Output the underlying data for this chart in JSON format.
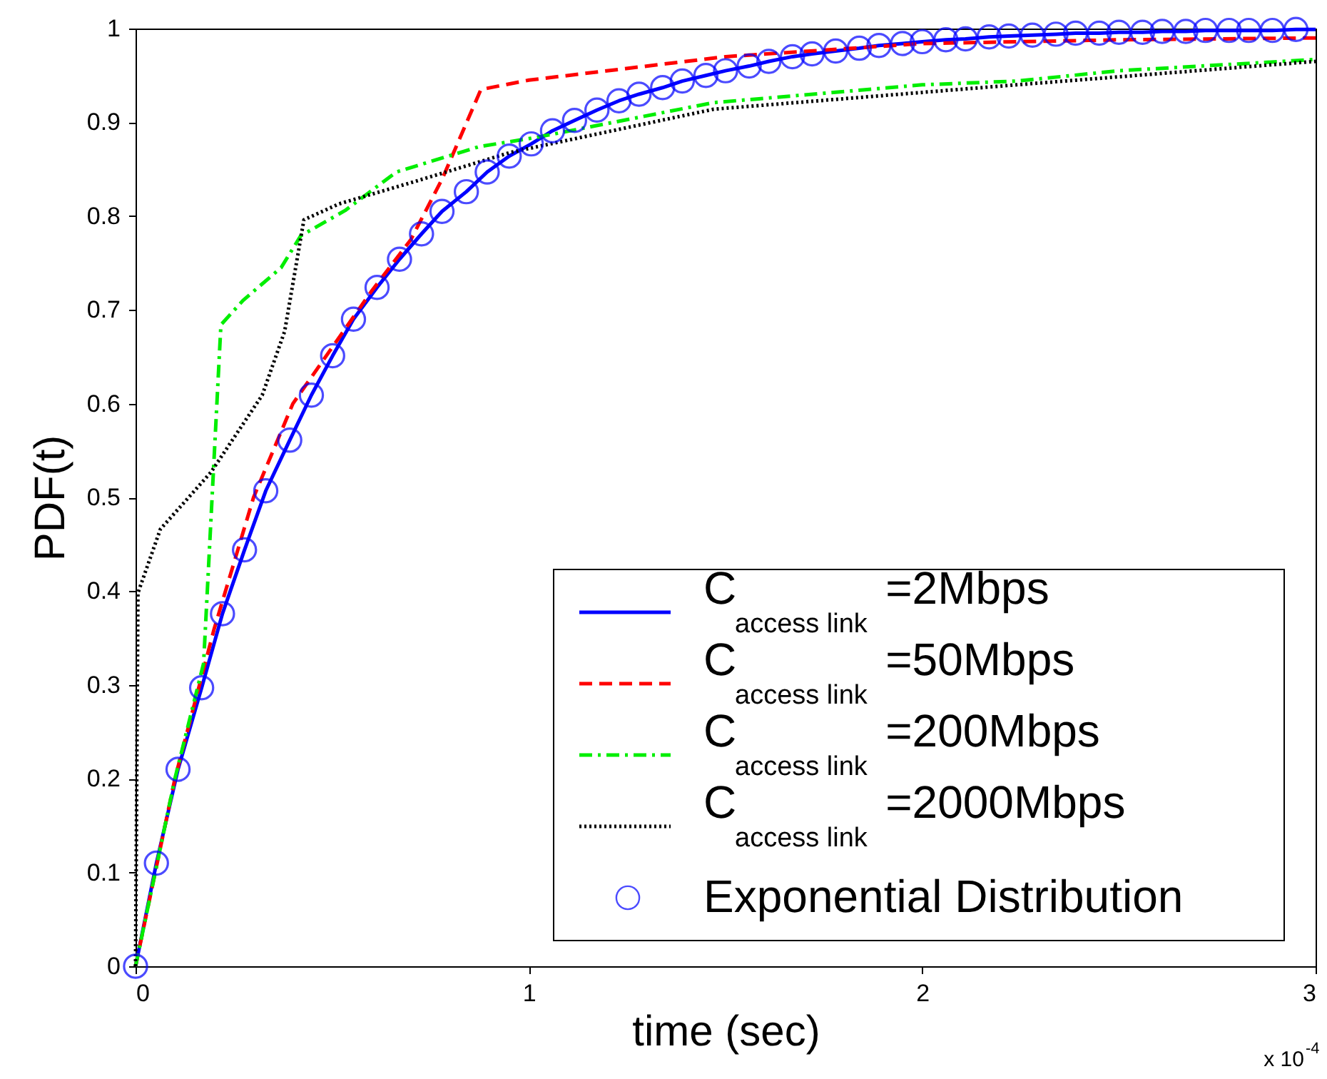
{
  "chart_data": {
    "type": "line",
    "xlabel": "time (sec)",
    "ylabel": "PDF(t)",
    "annotations": [
      "x 10$^{-4}$"
    ],
    "xlim": [
      0,
      3
    ],
    "xticks": [
      0,
      1,
      2,
      3
    ],
    "ylim": [
      0,
      1
    ],
    "yticks": [
      0,
      0.1,
      0.2,
      0.3,
      0.4,
      0.5,
      0.6,
      0.7,
      0.8,
      0.9,
      1
    ],
    "grid": false,
    "legend": "bottom right",
    "marker": "none",
    "series": [
      {
        "name": "C$_{access link}$=2Mbps",
        "color": "#0000ff",
        "line_style": "solid",
        "x": [
          0,
          0.053,
          0.108,
          0.168,
          0.221,
          0.277,
          0.331,
          0.392,
          0.447,
          0.501,
          0.554,
          0.614,
          0.671,
          0.727,
          0.779,
          0.841,
          0.894,
          0.95,
          1.006,
          1.06,
          1.116,
          1.173,
          1.229,
          1.28,
          1.34,
          1.39,
          1.45,
          1.5,
          1.56,
          1.61,
          1.67,
          1.72,
          1.78,
          1.84,
          1.89,
          1.95,
          2.0,
          2.06,
          2.11,
          2.17,
          2.22,
          2.28,
          2.34,
          2.39,
          2.45,
          2.5,
          2.56,
          2.61,
          2.67,
          2.72,
          2.78,
          2.83,
          2.89,
          2.95,
          3.0
        ],
        "values": [
          0,
          0.11,
          0.21,
          0.297,
          0.376,
          0.444,
          0.507,
          0.561,
          0.609,
          0.651,
          0.69,
          0.724,
          0.754,
          0.781,
          0.805,
          0.826,
          0.847,
          0.864,
          0.877,
          0.891,
          0.902,
          0.913,
          0.923,
          0.93,
          0.937,
          0.944,
          0.95,
          0.955,
          0.96,
          0.965,
          0.97,
          0.973,
          0.976,
          0.979,
          0.982,
          0.984,
          0.986,
          0.988,
          0.989,
          0.991,
          0.992,
          0.993,
          0.994,
          0.995,
          0.995,
          0.996,
          0.996,
          0.997,
          0.997,
          0.998,
          0.998,
          0.998,
          0.998,
          0.999,
          0.999
        ]
      },
      {
        "name": "C$_{access link}$=50Mbps",
        "color": "#ff0000",
        "line_style": "dashed",
        "x": [
          0,
          0.1,
          0.2,
          0.3,
          0.4,
          0.5,
          0.6,
          0.7,
          0.78,
          0.878,
          1.0,
          1.5,
          2.0,
          2.5,
          3.0
        ],
        "values": [
          0,
          0.2,
          0.36,
          0.5,
          0.6,
          0.66,
          0.72,
          0.775,
          0.84,
          0.935,
          0.945,
          0.97,
          0.984,
          0.988,
          0.99
        ]
      },
      {
        "name": "C$_{access link}$=200Mbps",
        "color": "#00ee00",
        "line_style": "dashdot",
        "x": [
          0,
          0.1,
          0.173,
          0.217,
          0.273,
          0.37,
          0.42,
          0.533,
          0.663,
          0.873,
          1.02,
          1.47,
          2.0,
          2.24,
          2.5,
          3.0
        ],
        "values": [
          0,
          0.2,
          0.323,
          0.684,
          0.71,
          0.745,
          0.779,
          0.806,
          0.847,
          0.874,
          0.884,
          0.921,
          0.94,
          0.944,
          0.955,
          0.967
        ]
      },
      {
        "name": "C$_{access link}$=2000Mbps",
        "color": "#000000",
        "line_style": "dotted",
        "x": [
          0,
          0.006,
          0.063,
          0.192,
          0.322,
          0.379,
          0.428,
          0.517,
          0.711,
          0.954,
          1.47,
          2.24,
          3.0
        ],
        "values": [
          0,
          0.398,
          0.466,
          0.527,
          0.609,
          0.677,
          0.796,
          0.813,
          0.837,
          0.868,
          0.914,
          0.94,
          0.965
        ]
      },
      {
        "name": "Exponential Distribution",
        "color": "#0000ff",
        "type": "scatter",
        "marker": "circle",
        "x": [
          0,
          0.053,
          0.108,
          0.168,
          0.221,
          0.277,
          0.331,
          0.392,
          0.447,
          0.501,
          0.554,
          0.614,
          0.671,
          0.727,
          0.779,
          0.841,
          0.894,
          0.95,
          1.006,
          1.06,
          1.116,
          1.173,
          1.229,
          1.28,
          1.34,
          1.39,
          1.45,
          1.5,
          1.56,
          1.61,
          1.67,
          1.72,
          1.78,
          1.84,
          1.89,
          1.95,
          2.0,
          2.06,
          2.11,
          2.17,
          2.22,
          2.28,
          2.34,
          2.39,
          2.45,
          2.5,
          2.56,
          2.61,
          2.67,
          2.72,
          2.78,
          2.83,
          2.89,
          2.95
        ],
        "values": [
          0,
          0.11,
          0.21,
          0.297,
          0.376,
          0.444,
          0.507,
          0.561,
          0.609,
          0.651,
          0.69,
          0.724,
          0.754,
          0.781,
          0.805,
          0.826,
          0.847,
          0.864,
          0.877,
          0.891,
          0.902,
          0.913,
          0.923,
          0.93,
          0.937,
          0.944,
          0.95,
          0.955,
          0.96,
          0.965,
          0.97,
          0.973,
          0.976,
          0.979,
          0.982,
          0.984,
          0.986,
          0.988,
          0.989,
          0.991,
          0.992,
          0.993,
          0.994,
          0.995,
          0.995,
          0.996,
          0.996,
          0.997,
          0.997,
          0.998,
          0.998,
          0.998,
          0.998,
          0.999
        ]
      }
    ]
  }
}
